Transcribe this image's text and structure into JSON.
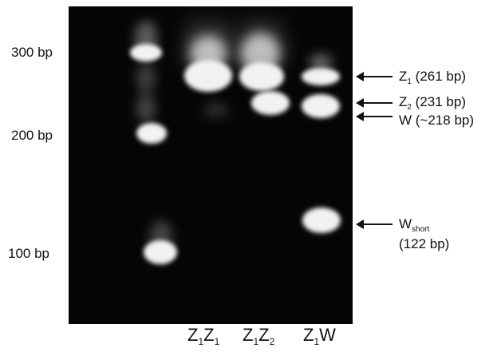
{
  "size_markers": [
    "300 bp",
    "200 bp",
    "100 bp"
  ],
  "lanes": [
    {
      "label_parts": [
        "Z",
        "1",
        "Z",
        "1"
      ]
    },
    {
      "label_parts": [
        "Z",
        "1",
        "Z",
        "2"
      ]
    },
    {
      "label_parts": [
        "Z",
        "1",
        "W"
      ]
    }
  ],
  "annotations": {
    "z1": {
      "main": "Z",
      "sub": "1",
      "rest": " (261 bp)"
    },
    "z2": {
      "main": "Z",
      "sub": "2",
      "rest": " (231 bp)"
    },
    "w": {
      "text": "W (~218 bp)"
    },
    "wshort": {
      "main": "W",
      "sub": "short",
      "line2": "(122 bp)"
    }
  },
  "colors": {
    "gel_background": "#050505",
    "band": "#f2f2f2",
    "text": "#111111"
  }
}
